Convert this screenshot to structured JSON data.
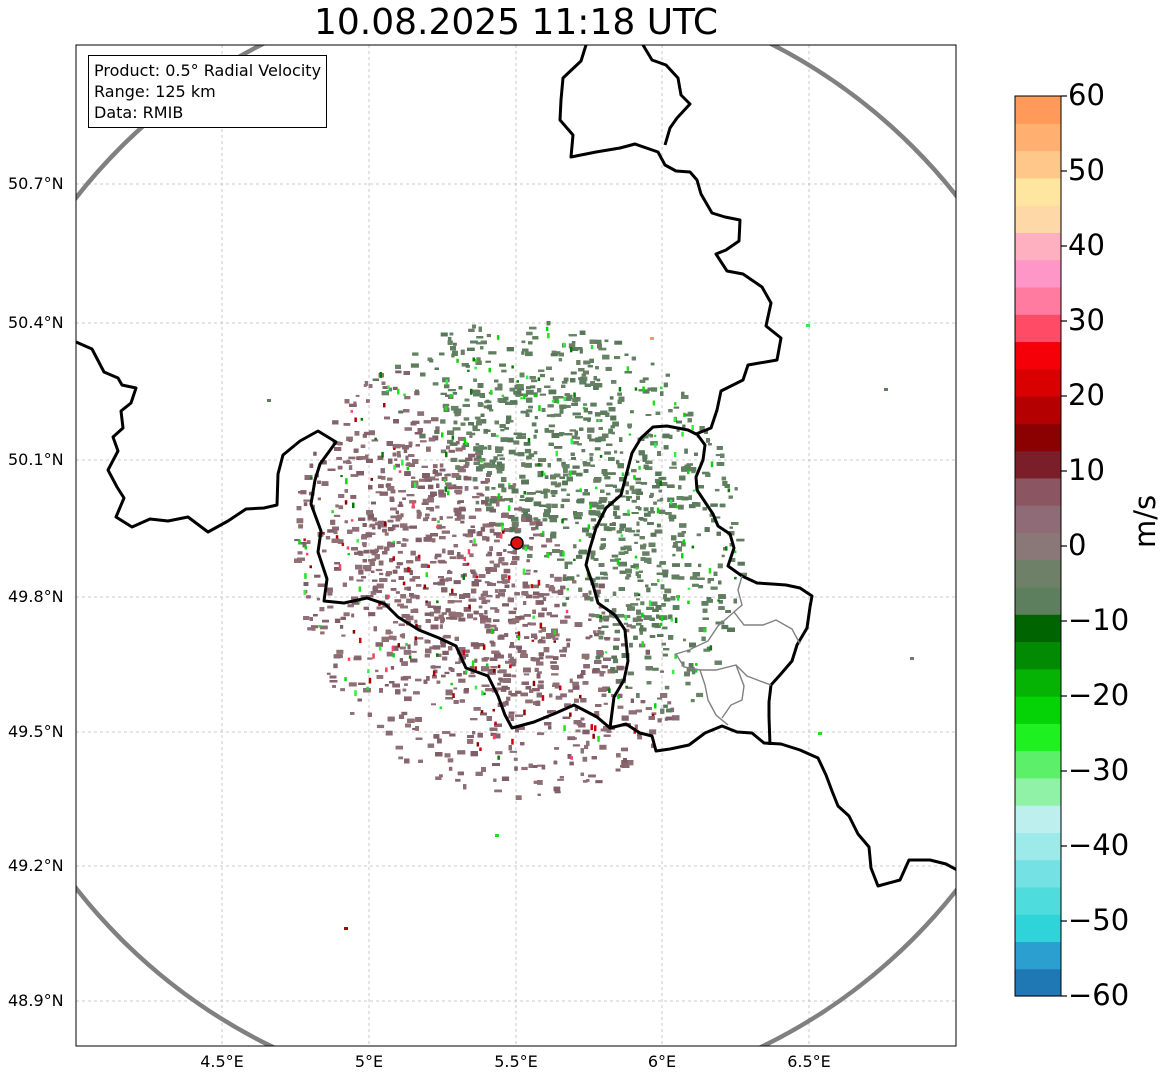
{
  "title": "10.08.2025 11:18 UTC",
  "info": {
    "product": "Product: 0.5° Radial Velocity",
    "range": "Range: 125 km",
    "data": "Data: RMIB"
  },
  "lat_labels": [
    "50.7°N",
    "50.4°N",
    "50.1°N",
    "49.8°N",
    "49.5°N",
    "49.2°N",
    "48.9°N"
  ],
  "lon_labels": [
    "4.5°E",
    "5°E",
    "5.5°E",
    "6°E",
    "6.5°E"
  ],
  "colorbar": {
    "label": "m/s",
    "ticks": [
      "60",
      "50",
      "40",
      "30",
      "20",
      "10",
      "0",
      "−10",
      "−20",
      "−30",
      "−40",
      "−50",
      "−60"
    ],
    "range": [
      -60,
      60
    ],
    "colors": [
      "#1f77b4",
      "#2a9fd0",
      "#2fd3da",
      "#4edcdd",
      "#74e2e4",
      "#9deaea",
      "#bdefef",
      "#8ff2a6",
      "#5cf06a",
      "#1ff01f",
      "#06d306",
      "#04b304",
      "#028a02",
      "#006400",
      "#5e7f5e",
      "#6e8068",
      "#8a7777",
      "#8f6b77",
      "#8b5662",
      "#7a1f2a",
      "#8b0000",
      "#b40000",
      "#d80000",
      "#f50008",
      "#ff4b66",
      "#ff7ba0",
      "#ff96c8",
      "#ffb0c0",
      "#ffd8a8",
      "#ffe6a0",
      "#ffc88a",
      "#ffb070",
      "#ff9a5a"
    ]
  },
  "map": {
    "radar_site": {
      "lon": 5.505,
      "lat": 49.915
    },
    "extent": {
      "lon": [
        4.0,
        7.0
      ],
      "lat": [
        48.8,
        50.99
      ]
    },
    "range_ring_color": "#808080",
    "radar_marker_color": "#e01010"
  }
}
